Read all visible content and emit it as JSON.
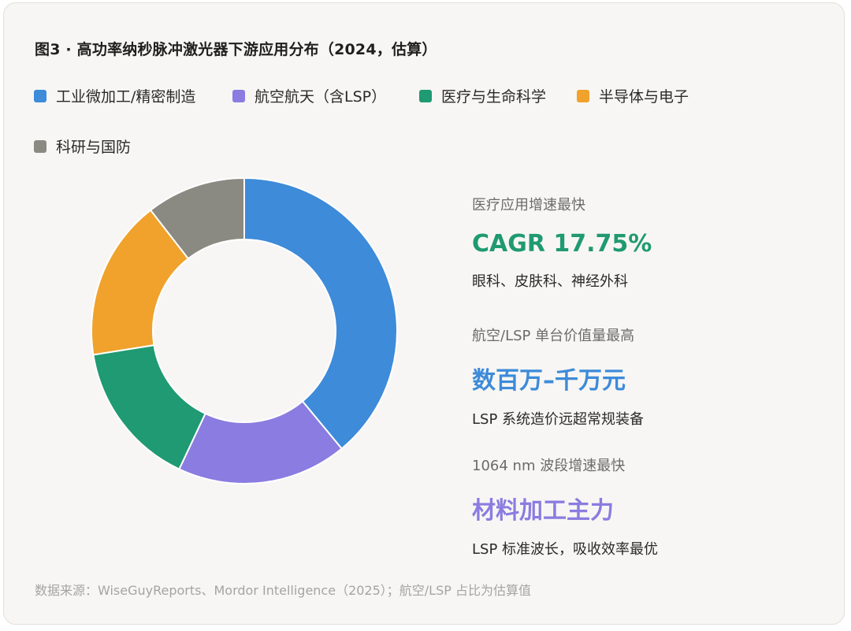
{
  "title": "图3 · 高功率纳秒脉冲激光器下游应用分布（2024，估算）",
  "legend": [
    {
      "label": "工业微加工/精密制造",
      "color": "#3d8bd9"
    },
    {
      "label": "航空航天（含LSP）",
      "color": "#8a7ce0"
    },
    {
      "label": "医疗与生命科学",
      "color": "#1f9a72"
    },
    {
      "label": "半导体与电子",
      "color": "#f0a22c"
    },
    {
      "label": "科研与国防",
      "color": "#8a8a82"
    }
  ],
  "chart_data": {
    "type": "pie",
    "title": "图3 · 高功率纳秒脉冲激光器下游应用分布（2024，估算）",
    "donut": true,
    "legend_position": "top",
    "labels": [
      "工业微加工/精密制造",
      "航空航天（含LSP）",
      "医疗与生命科学",
      "半导体与电子",
      "科研与国防"
    ],
    "values": [
      39,
      18,
      15.5,
      17,
      10.5
    ],
    "colors": [
      "#3d8bd9",
      "#8a7ce0",
      "#1f9a72",
      "#f0a22c",
      "#8a8a82"
    ]
  },
  "stats": [
    {
      "subtitle": "医疗应用增速最快",
      "value": "CAGR 17.75%",
      "desc": "眼科、皮肤科、神经外科",
      "color": "#1f9a72"
    },
    {
      "subtitle": "航空/LSP 单台价值量最高",
      "value": "数百万–千万元",
      "desc": "LSP 系统造价远超常规装备",
      "color": "#3d8bd9"
    },
    {
      "subtitle": "1064 nm 波段增速最快",
      "value": "材料加工主力",
      "desc": "LSP 标准波长，吸收效率最优",
      "color": "#8a7ce0"
    }
  ],
  "source": "数据来源：WiseGuyReports、Mordor Intelligence（2025）；航空/LSP 占比为估算值"
}
